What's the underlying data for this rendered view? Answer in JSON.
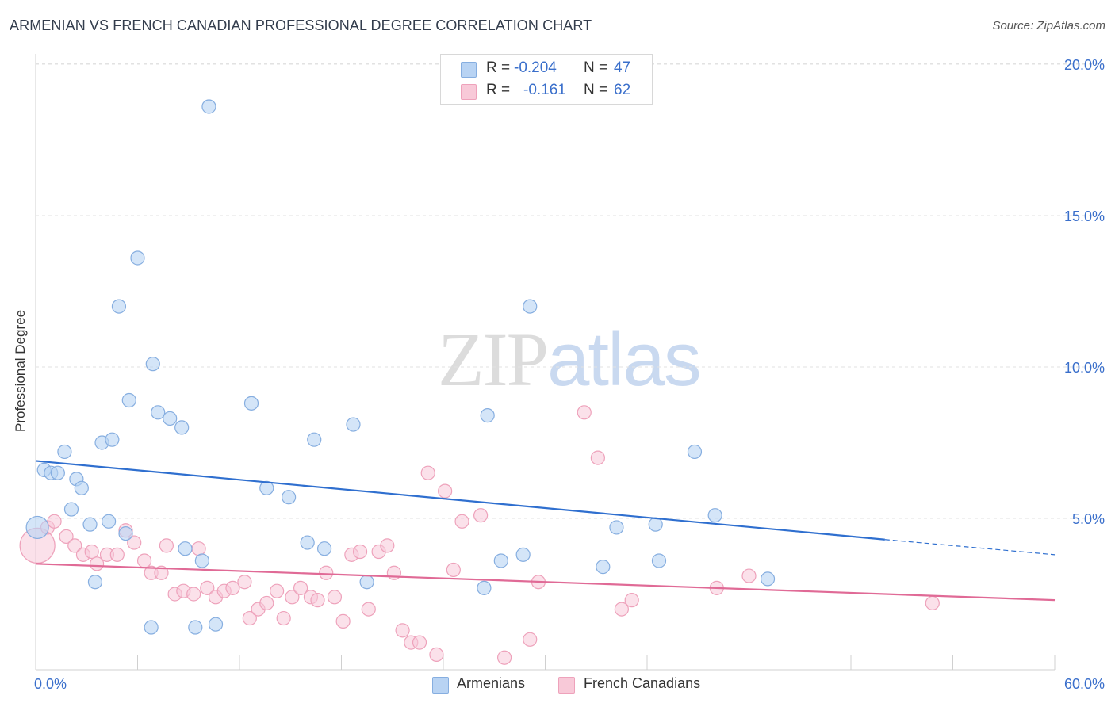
{
  "header": {
    "title": "ARMENIAN VS FRENCH CANADIAN PROFESSIONAL DEGREE CORRELATION CHART",
    "source": "Source: ZipAtlas.com"
  },
  "watermark": {
    "zip": "ZIP",
    "atlas": "atlas"
  },
  "legend_top": [
    {
      "r_label": "R =",
      "r_value": "-0.204",
      "n_label": "N =",
      "n_value": "47"
    },
    {
      "r_label": "R =",
      "r_value": "-0.161",
      "n_label": "N =",
      "n_value": "62"
    }
  ],
  "legend_bottom": [
    {
      "label": "Armenians"
    },
    {
      "label": "French Canadians"
    }
  ],
  "colors": {
    "armenian_fill": "#b8d3f3",
    "armenian_stroke": "#86aee0",
    "armenian_line": "#2f6fcf",
    "french_fill": "#f8c9d8",
    "french_stroke": "#eea2bb",
    "french_line": "#e06a96",
    "tick_label": "#3a6fcb"
  },
  "chart_data": {
    "type": "scatter",
    "title": "ARMENIAN VS FRENCH CANADIAN PROFESSIONAL DEGREE CORRELATION CHART",
    "xlabel": "",
    "ylabel": "Professional Degree",
    "xlim": [
      0,
      60
    ],
    "ylim": [
      0,
      20.5
    ],
    "x_tick_labels": [
      {
        "value": 0,
        "label": "0.0%"
      },
      {
        "value": 60,
        "label": "60.0%"
      }
    ],
    "y_tick_labels": [
      {
        "value": 5,
        "label": "5.0%"
      },
      {
        "value": 10,
        "label": "10.0%"
      },
      {
        "value": 15,
        "label": "15.0%"
      },
      {
        "value": 20,
        "label": "20.0%"
      }
    ],
    "grid": true,
    "series": [
      {
        "name": "Armenians",
        "r": -0.204,
        "n": 47,
        "trend": {
          "x0": 0,
          "y0": 6.9,
          "x1": 50,
          "y1": 4.3,
          "dashed_to": 60,
          "dashed_y": 3.8
        },
        "points": [
          [
            0.1,
            4.7
          ],
          [
            0.5,
            6.6
          ],
          [
            0.9,
            6.5
          ],
          [
            1.3,
            6.5
          ],
          [
            1.7,
            7.2
          ],
          [
            2.1,
            5.3
          ],
          [
            2.4,
            6.3
          ],
          [
            2.7,
            6.0
          ],
          [
            3.2,
            4.8
          ],
          [
            3.5,
            2.9
          ],
          [
            3.9,
            7.5
          ],
          [
            4.5,
            7.6
          ],
          [
            4.3,
            4.9
          ],
          [
            4.9,
            12.0
          ],
          [
            5.3,
            4.5
          ],
          [
            5.5,
            8.9
          ],
          [
            6.0,
            13.6
          ],
          [
            6.8,
            1.4
          ],
          [
            6.9,
            10.1
          ],
          [
            7.2,
            8.5
          ],
          [
            7.9,
            8.3
          ],
          [
            8.6,
            8.0
          ],
          [
            8.8,
            4.0
          ],
          [
            9.4,
            1.4
          ],
          [
            9.8,
            3.6
          ],
          [
            10.2,
            18.6
          ],
          [
            10.6,
            1.5
          ],
          [
            12.7,
            8.8
          ],
          [
            13.6,
            6.0
          ],
          [
            14.9,
            5.7
          ],
          [
            16.0,
            4.2
          ],
          [
            16.4,
            7.6
          ],
          [
            17.0,
            4.0
          ],
          [
            18.7,
            8.1
          ],
          [
            19.5,
            2.9
          ],
          [
            26.6,
            8.4
          ],
          [
            26.4,
            2.7
          ],
          [
            27.4,
            3.6
          ],
          [
            28.7,
            3.8
          ],
          [
            29.1,
            12.0
          ],
          [
            33.4,
            3.4
          ],
          [
            34.2,
            4.7
          ],
          [
            36.5,
            4.8
          ],
          [
            36.7,
            3.6
          ],
          [
            38.8,
            7.2
          ],
          [
            40.0,
            5.1
          ],
          [
            43.1,
            3.0
          ]
        ]
      },
      {
        "name": "French Canadians",
        "r": -0.161,
        "n": 62,
        "trend": {
          "x0": 0,
          "y0": 3.5,
          "x1": 60,
          "y1": 2.3
        },
        "points": [
          [
            0.1,
            4.1
          ],
          [
            0.7,
            4.7
          ],
          [
            1.1,
            4.9
          ],
          [
            1.8,
            4.4
          ],
          [
            2.3,
            4.1
          ],
          [
            2.8,
            3.8
          ],
          [
            3.3,
            3.9
          ],
          [
            3.6,
            3.5
          ],
          [
            4.2,
            3.8
          ],
          [
            4.8,
            3.8
          ],
          [
            5.3,
            4.6
          ],
          [
            5.8,
            4.2
          ],
          [
            6.4,
            3.6
          ],
          [
            6.8,
            3.2
          ],
          [
            7.4,
            3.2
          ],
          [
            7.7,
            4.1
          ],
          [
            8.2,
            2.5
          ],
          [
            8.7,
            2.6
          ],
          [
            9.3,
            2.5
          ],
          [
            9.6,
            4.0
          ],
          [
            10.1,
            2.7
          ],
          [
            10.6,
            2.4
          ],
          [
            11.1,
            2.6
          ],
          [
            11.6,
            2.7
          ],
          [
            12.3,
            2.9
          ],
          [
            12.6,
            1.7
          ],
          [
            13.1,
            2.0
          ],
          [
            13.6,
            2.2
          ],
          [
            14.2,
            2.6
          ],
          [
            14.6,
            1.7
          ],
          [
            15.1,
            2.4
          ],
          [
            15.6,
            2.7
          ],
          [
            16.2,
            2.4
          ],
          [
            16.6,
            2.3
          ],
          [
            17.1,
            3.2
          ],
          [
            17.6,
            2.4
          ],
          [
            18.1,
            1.6
          ],
          [
            18.6,
            3.8
          ],
          [
            19.1,
            3.9
          ],
          [
            19.6,
            2.0
          ],
          [
            20.2,
            3.9
          ],
          [
            20.7,
            4.1
          ],
          [
            21.1,
            3.2
          ],
          [
            21.6,
            1.3
          ],
          [
            22.1,
            0.9
          ],
          [
            22.6,
            0.9
          ],
          [
            23.1,
            6.5
          ],
          [
            23.6,
            0.5
          ],
          [
            24.1,
            5.9
          ],
          [
            24.6,
            3.3
          ],
          [
            25.1,
            4.9
          ],
          [
            26.2,
            5.1
          ],
          [
            27.6,
            0.4
          ],
          [
            29.1,
            1.0
          ],
          [
            29.6,
            2.9
          ],
          [
            32.3,
            8.5
          ],
          [
            33.1,
            7.0
          ],
          [
            34.5,
            2.0
          ],
          [
            35.1,
            2.3
          ],
          [
            40.1,
            2.7
          ],
          [
            42.0,
            3.1
          ],
          [
            52.8,
            2.2
          ]
        ]
      }
    ]
  }
}
